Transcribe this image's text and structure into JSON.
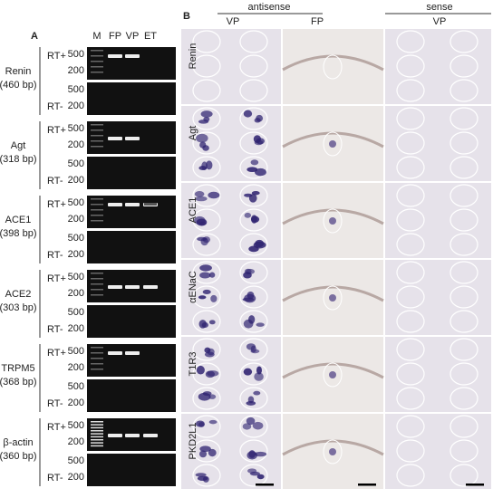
{
  "panel_a": {
    "label": "A",
    "lanes": [
      "M",
      "FP",
      "VP",
      "ET"
    ],
    "genes": [
      {
        "name": "Renin",
        "size": "(460 bp)"
      },
      {
        "name": "Agt",
        "size": "(318 bp)"
      },
      {
        "name": "ACE1",
        "size": "(398 bp)"
      },
      {
        "name": "ACE2",
        "size": "(303 bp)"
      },
      {
        "name": "TRPM5",
        "size": "(368 bp)"
      },
      {
        "name": "β-actin",
        "size": "(360 bp)"
      }
    ],
    "rt_plus": "RT+",
    "rt_minus": "RT-",
    "ladder": [
      "500",
      "200"
    ]
  },
  "panel_b": {
    "label": "B",
    "antisense": "antisense",
    "sense": "sense",
    "columns": [
      "VP",
      "FP",
      "VP"
    ],
    "rows": [
      "Renin",
      "Agt",
      "ACE1",
      "αENaC",
      "T1R3",
      "PKD2L1"
    ]
  }
}
